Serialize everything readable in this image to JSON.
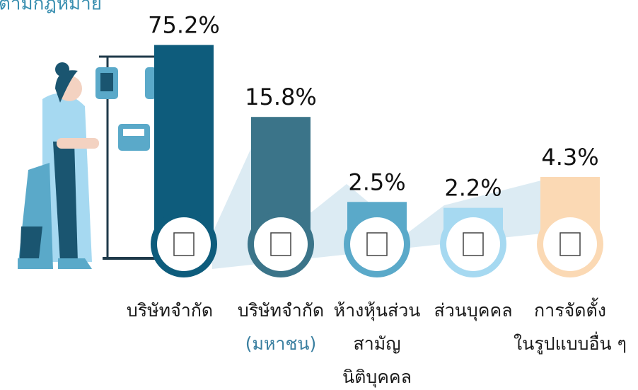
{
  "chart_data": {
    "type": "bar",
    "title": "ตามกฎหมาย",
    "categories": [
      [
        "บริษัทจำกัด"
      ],
      [
        "บริษัทจำกัด",
        "(มหาชน)"
      ],
      [
        "ห้างหุ้นส่วน",
        "สามัญ",
        "นิติบุคคล"
      ],
      [
        "ส่วนบุคคล"
      ],
      [
        "การจัดตั้ง",
        "ในรูปแบบอื่น ๆ"
      ]
    ],
    "values": [
      75.2,
      15.8,
      2.5,
      2.2,
      4.3
    ],
    "value_labels": [
      "75.2%",
      "15.8%",
      "2.5%",
      "2.2%",
      "4.3%"
    ],
    "colors": [
      "#0e5c7c",
      "#3b7489",
      "#5aa9c9",
      "#a6d9f1",
      "#fbd9b4"
    ],
    "ylim": [
      1,
      100
    ],
    "log_scale": true
  }
}
